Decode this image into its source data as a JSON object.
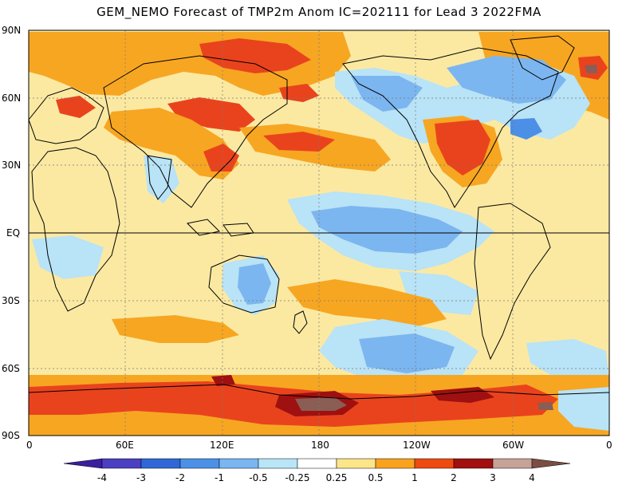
{
  "title": "GEM_NEMO Forecast of TMP2m Anom IC=202111 for Lead 3 2022FMA",
  "lat_labels": [
    "90N",
    "60N",
    "30N",
    "EQ",
    "30S",
    "60S",
    "90S"
  ],
  "lon_labels": [
    "0",
    "60E",
    "120E",
    "180",
    "120W",
    "60W",
    "0"
  ],
  "colorbar": {
    "labels": [
      "-4",
      "-3",
      "-2",
      "-1",
      "-0.5",
      "-0.25",
      "0.25",
      "0.5",
      "1",
      "2",
      "3",
      "4"
    ],
    "colors": [
      "#3a1f9e",
      "#4b3fc2",
      "#2f68d6",
      "#4c91e8",
      "#79b6f2",
      "#b8e6f7",
      "#ffffff",
      "#fde58a",
      "#f9a21e",
      "#ee4a12",
      "#a10f0f",
      "#c7a296",
      "#7c4d44"
    ]
  },
  "anomaly_colors": {
    "background": "#fbe9a2",
    "orange": "#f7a622",
    "red": "#e9431d",
    "darkred": "#9f1010",
    "brown": "#8a5d55",
    "neutral": "#ffffff",
    "lightblue": "#b9e3f6",
    "blue": "#7cb6f0",
    "midblue": "#4c8fe6"
  }
}
